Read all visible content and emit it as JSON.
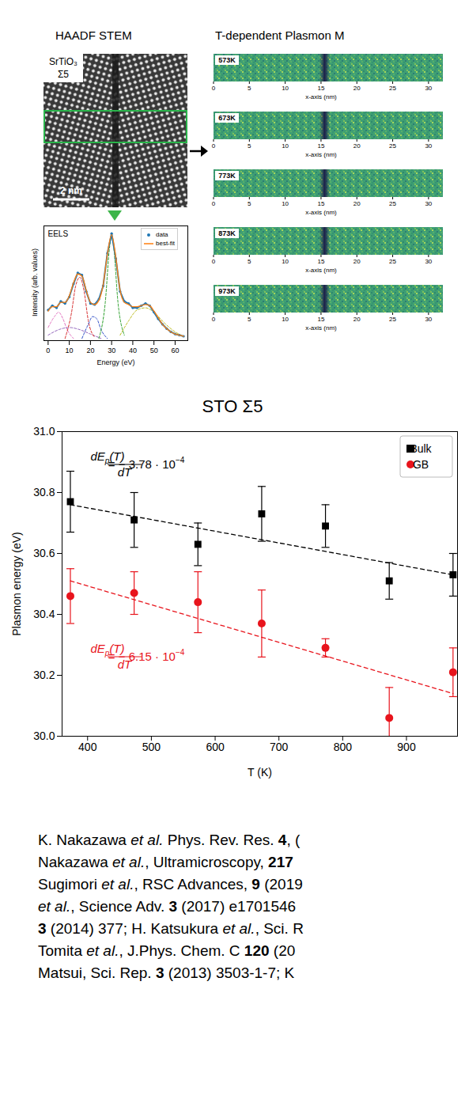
{
  "header": {
    "haadf_title": "HAADF STEM",
    "maps_title": "T-dependent Plasmon M"
  },
  "haadf": {
    "label": [
      "SrTiO₃",
      "Σ5"
    ],
    "scale_bar": "2 nm"
  },
  "plasmon_maps": {
    "temperatures": [
      "573K",
      "673K",
      "773K",
      "873K",
      "973K"
    ],
    "xlim": [
      0,
      32
    ],
    "xticks": [
      0,
      5,
      10,
      15,
      20,
      25,
      30
    ],
    "xlabel": "x-axis (nm)",
    "gb_position_nm": 15.5
  },
  "chart_data": [
    {
      "type": "line",
      "label": "EELS",
      "xlabel": "Energy (eV)",
      "ylabel": "Intensity (arb. values)",
      "xlim": [
        -2,
        66
      ],
      "xticks": [
        0,
        10,
        20,
        30,
        40,
        50,
        60
      ],
      "ylim": [
        0,
        1.05
      ],
      "tick_labels": "x",
      "legend": "top-right",
      "series": [
        {
          "color": "#e377c2",
          "line_style": "dashed",
          "x": [
            0,
            3,
            5,
            7,
            9,
            12
          ],
          "values": [
            0.12,
            0.22,
            0.26,
            0.2,
            0.1,
            0.02
          ]
        },
        {
          "color": "#9467bd",
          "line_style": "dashed",
          "x": [
            0,
            5,
            10,
            15,
            20,
            25
          ],
          "values": [
            0.05,
            0.1,
            0.12,
            0.1,
            0.06,
            0.02
          ]
        },
        {
          "color": "#d62728",
          "line_style": "dashed",
          "x": [
            8,
            11,
            13,
            15,
            17,
            19,
            22
          ],
          "values": [
            0.02,
            0.25,
            0.5,
            0.58,
            0.45,
            0.18,
            0.03
          ]
        },
        {
          "color": "#3050c8",
          "line_style": "dashed",
          "x": [
            16,
            19,
            21,
            23,
            25,
            28
          ],
          "values": [
            0.02,
            0.15,
            0.22,
            0.2,
            0.1,
            0.02
          ]
        },
        {
          "color": "#2ca02c",
          "line_style": "dashed",
          "x": [
            24,
            27,
            29,
            30,
            31,
            33,
            36
          ],
          "values": [
            0.02,
            0.35,
            0.85,
            0.95,
            0.85,
            0.35,
            0.05
          ]
        },
        {
          "color": "#bcbd22",
          "line_style": "dashed",
          "x": [
            34,
            38,
            42,
            46,
            50,
            55,
            60,
            64
          ],
          "values": [
            0.05,
            0.18,
            0.28,
            0.3,
            0.26,
            0.16,
            0.08,
            0.04
          ]
        },
        {
          "name": "data",
          "color": "#1f77b4",
          "marker": "dot",
          "x": [
            0,
            2,
            4,
            6,
            8,
            10,
            12,
            14,
            16,
            18,
            20,
            22,
            24,
            26,
            28,
            30,
            32,
            34,
            36,
            38,
            40,
            42,
            44,
            46,
            48,
            50,
            52,
            54,
            56,
            58,
            60,
            62,
            64
          ],
          "values": [
            0.28,
            0.32,
            0.3,
            0.36,
            0.34,
            0.4,
            0.52,
            0.62,
            0.6,
            0.45,
            0.34,
            0.33,
            0.38,
            0.5,
            0.8,
            0.98,
            0.75,
            0.45,
            0.36,
            0.34,
            0.3,
            0.3,
            0.32,
            0.34,
            0.32,
            0.26,
            0.2,
            0.15,
            0.11,
            0.08,
            0.06,
            0.05,
            0.04
          ]
        },
        {
          "name": "best-fit",
          "color": "#ff7f0e",
          "line_style": "solid",
          "x": [
            0,
            2,
            4,
            6,
            8,
            10,
            12,
            14,
            16,
            18,
            20,
            22,
            24,
            26,
            28,
            30,
            32,
            34,
            36,
            38,
            40,
            42,
            44,
            46,
            48,
            50,
            52,
            54,
            56,
            58,
            60,
            62,
            64
          ],
          "values": [
            0.27,
            0.31,
            0.31,
            0.35,
            0.35,
            0.41,
            0.53,
            0.61,
            0.59,
            0.46,
            0.35,
            0.33,
            0.37,
            0.51,
            0.79,
            0.97,
            0.76,
            0.46,
            0.35,
            0.33,
            0.31,
            0.31,
            0.32,
            0.33,
            0.32,
            0.27,
            0.21,
            0.15,
            0.11,
            0.08,
            0.06,
            0.05,
            0.04
          ]
        }
      ]
    },
    {
      "type": "scatter",
      "title": "STO Σ5",
      "xlabel": "T (K)",
      "ylabel": "Plasmon energy (eV)",
      "xlim": [
        360,
        980
      ],
      "xticks": [
        400,
        500,
        600,
        700,
        800,
        900
      ],
      "ylim": [
        30,
        31
      ],
      "yticks": [
        {
          "value": 30,
          "label": "30.0"
        },
        30.2,
        30.4,
        30.6,
        30.8,
        {
          "value": 31,
          "label": "31.0"
        }
      ],
      "legend": "top-right",
      "x": [
        373,
        473,
        573,
        673,
        773,
        873,
        973
      ],
      "series": [
        {
          "name": "Bulk",
          "color": "#000000",
          "marker": "square",
          "values": [
            30.77,
            30.71,
            30.63,
            30.73,
            30.69,
            30.51,
            30.53
          ],
          "errors": [
            0.1,
            0.09,
            0.07,
            0.09,
            0.07,
            0.06,
            0.07
          ],
          "fit": {
            "line_style": "dashed",
            "x": [
              373,
              973
            ],
            "values": [
              30.76,
              30.53
            ]
          },
          "annotation": {
            "numerator": {
              "base": "dE",
              "sub": "p",
              "rest": "(T)"
            },
            "denominator": "dT",
            "rhs": "= − 3.78 · 10",
            "exponent": "−4"
          }
        },
        {
          "name": "GB",
          "color": "#e8141c",
          "marker": "circle",
          "values": [
            30.46,
            30.47,
            30.44,
            30.37,
            30.29,
            30.06,
            30.21
          ],
          "errors": [
            0.09,
            0.07,
            0.1,
            0.11,
            0.03,
            0.1,
            0.08
          ],
          "fit": {
            "line_style": "dashed",
            "x": [
              373,
              973
            ],
            "values": [
              30.51,
              30.14
            ]
          },
          "annotation": {
            "numerator": {
              "base": "dE",
              "sub": "p",
              "rest": "(T)"
            },
            "denominator": "dT",
            "rhs": "= − 6.15 · 10",
            "exponent": "−4"
          }
        }
      ]
    }
  ],
  "references": [
    [
      "K. Nakazawa ",
      {
        "text": "et al.",
        "style": "italic"
      },
      " Phys. Rev. Res. ",
      {
        "text": "4",
        "style": "bold"
      },
      ", ("
    ],
    [
      "Nakazawa ",
      {
        "text": "et al.",
        "style": "italic"
      },
      ", Ultramicroscopy, ",
      {
        "text": "217",
        "style": "bold"
      }
    ],
    [
      "Sugimori ",
      {
        "text": "et al.",
        "style": "italic"
      },
      ", RSC Advances, ",
      {
        "text": "9",
        "style": "bold"
      },
      " (2019"
    ],
    [
      {
        "text": "et al.",
        "style": "italic"
      },
      ", Science Adv. ",
      {
        "text": "3",
        "style": "bold"
      },
      " (2017) e1701546"
    ],
    [
      {
        "text": "3",
        "style": "bold"
      },
      " (2014) 377; H. Katsukura ",
      {
        "text": "et al.",
        "style": "italic"
      },
      ", Sci. R"
    ],
    [
      "Tomita ",
      {
        "text": "et al.",
        "style": "italic"
      },
      ", J.Phys. Chem. C ",
      {
        "text": "120",
        "style": "bold"
      },
      " (20"
    ],
    [
      "Matsui, Sci. Rep. ",
      {
        "text": "3",
        "style": "bold"
      },
      " (2013) 3503-1-7; K"
    ]
  ]
}
